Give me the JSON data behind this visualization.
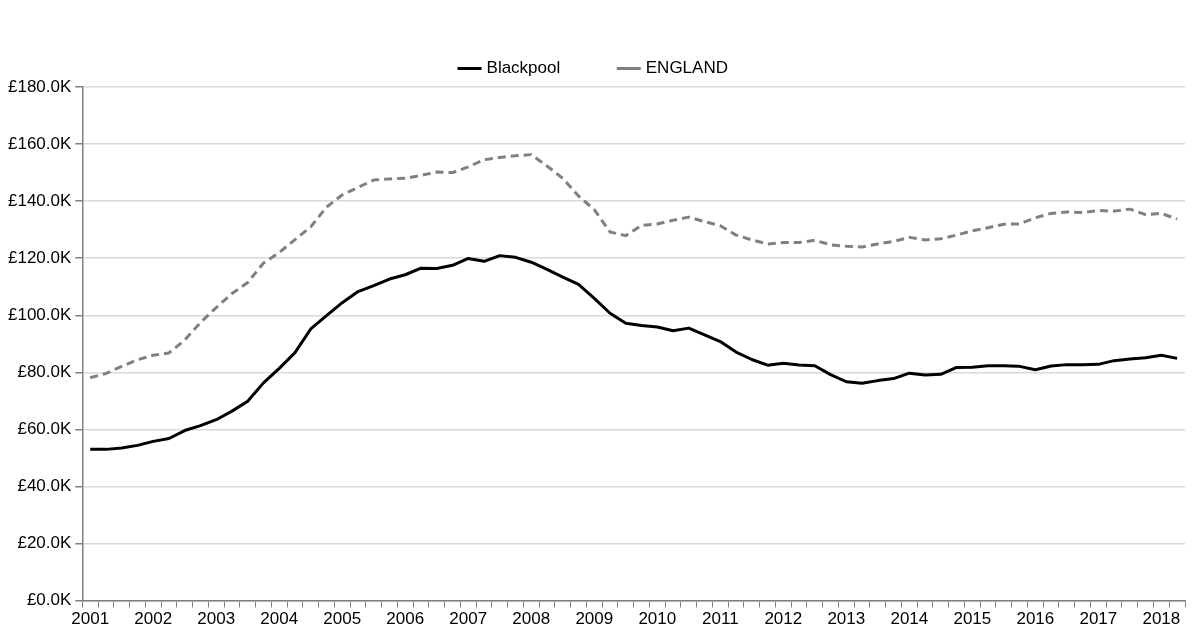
{
  "chart_data": {
    "type": "line",
    "categories": [
      "2001",
      null,
      null,
      null,
      "2002",
      null,
      null,
      null,
      "2003",
      null,
      null,
      null,
      "2004",
      null,
      null,
      null,
      "2005",
      null,
      null,
      null,
      "2006",
      null,
      null,
      null,
      "2007",
      null,
      null,
      null,
      "2008",
      null,
      null,
      null,
      "2009",
      null,
      null,
      null,
      "2010",
      null,
      null,
      null,
      "2011",
      null,
      null,
      null,
      "2012",
      null,
      null,
      null,
      "2013",
      null,
      null,
      null,
      "2014",
      null,
      null,
      null,
      "2015",
      null,
      null,
      null,
      "2016",
      null,
      null,
      null,
      "2017",
      null,
      null,
      null,
      "2018",
      null
    ],
    "series": [
      {
        "name": "Blackpool",
        "color": "#000000",
        "line_style": "solid",
        "values": [
          53.0,
          53.0,
          53.5,
          54.4,
          55.8,
          56.8,
          59.6,
          61.3,
          63.4,
          66.4,
          69.9,
          76.3,
          81.4,
          86.9,
          95.2,
          99.9,
          104.4,
          108.3,
          110.4,
          112.7,
          114.2,
          116.5,
          116.4,
          117.5,
          119.9,
          118.9,
          120.9,
          120.3,
          118.6,
          116.1,
          113.4,
          110.8,
          105.9,
          100.7,
          97.2,
          96.4,
          95.9,
          94.6,
          95.5,
          93.1,
          90.8,
          87.1,
          84.5,
          82.5,
          83.2,
          82.6,
          82.3,
          79.2,
          76.7,
          76.2,
          77.1,
          77.8,
          79.7,
          79.1,
          79.3,
          81.7,
          81.8,
          82.3,
          82.3,
          82.1,
          80.9,
          82.2,
          82.7,
          82.7,
          82.8,
          84.1,
          84.7,
          85.1,
          86.0,
          84.9
        ]
      },
      {
        "name": "ENGLAND",
        "color": "#808080",
        "line_style": "dashed",
        "values": [
          78.1,
          79.6,
          82.1,
          84.4,
          86.0,
          86.8,
          91.3,
          97.5,
          102.7,
          107.6,
          111.5,
          118.3,
          122.0,
          126.5,
          131.0,
          137.9,
          142.2,
          144.8,
          147.4,
          147.8,
          148.0,
          149.0,
          150.2,
          150.0,
          152.0,
          154.5,
          155.3,
          155.9,
          156.3,
          152.3,
          148.0,
          141.8,
          137.0,
          129.2,
          127.9,
          131.5,
          132.0,
          133.3,
          134.4,
          132.8,
          131.4,
          128.1,
          126.4,
          125.0,
          125.5,
          125.5,
          126.3,
          124.7,
          124.2,
          123.9,
          125.0,
          125.9,
          127.3,
          126.4,
          126.8,
          128.1,
          129.6,
          130.7,
          131.9,
          132.0,
          134.2,
          135.7,
          136.2,
          136.0,
          136.7,
          136.5,
          137.2,
          135.3,
          135.7,
          133.7
        ]
      }
    ],
    "ylim": [
      0,
      180
    ],
    "yticks": [
      {
        "value": 0,
        "label": "£0.0K"
      },
      {
        "value": 20,
        "label": "£20.0K"
      },
      {
        "value": 40,
        "label": "£40.0K"
      },
      {
        "value": 60,
        "label": "£60.0K"
      },
      {
        "value": 80,
        "label": "£80.0K"
      },
      {
        "value": 100,
        "label": "£100.0K"
      },
      {
        "value": 120,
        "label": "£120.0K"
      },
      {
        "value": 140,
        "label": "£140.0K"
      },
      {
        "value": 160,
        "label": "£160.0K"
      },
      {
        "value": 180,
        "label": "£180.0K"
      }
    ],
    "grid": "y",
    "legend": "top",
    "marker": "none"
  }
}
